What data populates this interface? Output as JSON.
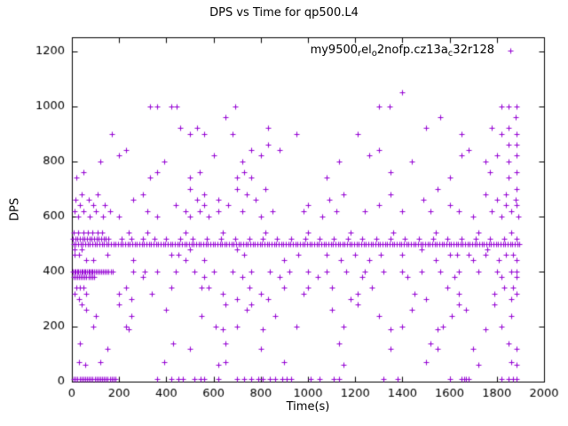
{
  "window": {
    "background": "#ffffff",
    "text_color": "#000000"
  },
  "chart_data": {
    "type": "scatter",
    "title": "DPS vs Time for qp500.L4",
    "xlabel": "Time(s)",
    "ylabel": "DPS",
    "xlim": [
      0,
      2000
    ],
    "ylim": [
      0,
      1250
    ],
    "x_ticks": [
      0,
      200,
      400,
      600,
      800,
      1000,
      1200,
      1400,
      1600,
      1800,
      2000
    ],
    "y_ticks": [
      0,
      200,
      400,
      600,
      800,
      1000,
      1200
    ],
    "grid": false,
    "legend": {
      "position": "top-right-inside",
      "label_plain": "my9500_rel_o2nofp.cz13a_c32r128",
      "label_parts": [
        {
          "t": "my9500"
        },
        {
          "t": "r",
          "sub": true
        },
        {
          "t": "el"
        },
        {
          "t": "o",
          "sub": true
        },
        {
          "t": "2nofp.cz13a"
        },
        {
          "t": "c",
          "sub": true
        },
        {
          "t": "32r128"
        }
      ]
    },
    "marker": {
      "shape": "plus",
      "color": "#9400d3",
      "size": 7
    },
    "series": [
      {
        "name": "my9500_rel_o2nofp.cz13a_c32r128",
        "rows": [
          {
            "y": 1050,
            "x": [
              1400
            ]
          },
          {
            "y": 1000,
            "x": [
              330,
              360,
              420,
              445,
              690,
              1300,
              1345,
              1820,
              1850,
              1882
            ]
          },
          {
            "y": 960,
            "x": [
              650,
              1560,
              1880
            ]
          },
          {
            "y": 920,
            "x": [
              460,
              530,
              830,
              1500,
              1780,
              1850
            ]
          },
          {
            "y": 900,
            "x": [
              170,
              500,
              560,
              680,
              950,
              1210,
              1650,
              1820,
              1882
            ]
          },
          {
            "y": 860,
            "x": [
              830,
              1850,
              1882
            ]
          },
          {
            "y": 840,
            "x": [
              230,
              760,
              880,
              1300,
              1680
            ]
          },
          {
            "y": 820,
            "x": [
              200,
              600,
              800,
              1260,
              1650,
              1800,
              1882
            ]
          },
          {
            "y": 800,
            "x": [
              120,
              390,
              720,
              1130,
              1440,
              1750,
              1850
            ]
          },
          {
            "y": 760,
            "x": [
              50,
              360,
              540,
              730,
              1350,
              1770,
              1882
            ]
          },
          {
            "y": 740,
            "x": [
              20,
              330,
              500,
              700,
              760,
              1080,
              1600,
              1850
            ]
          },
          {
            "y": 700,
            "x": [
              500,
              700,
              820,
              1550,
              1882
            ]
          },
          {
            "y": 680,
            "x": [
              40,
              110,
              300,
              560,
              740,
              1150,
              1350,
              1750,
              1840
            ]
          },
          {
            "y": 660,
            "x": [
              15,
              70,
              260,
              530,
              620,
              780,
              1090,
              1490,
              1800,
              1880
            ]
          },
          {
            "y": 640,
            "x": [
              35,
              90,
              140,
              440,
              560,
              660,
              1000,
              1300,
              1600,
              1840,
              1885
            ]
          },
          {
            "y": 620,
            "x": [
              10,
              50,
              100,
              160,
              320,
              480,
              540,
              620,
              720,
              850,
              980,
              1120,
              1240,
              1400,
              1520,
              1640,
              1780,
              1860
            ]
          },
          {
            "y": 600,
            "x": [
              25,
              75,
              130,
              200,
              360,
              500,
              580,
              800,
              1060,
              1700,
              1820,
              1890
            ]
          },
          {
            "y": 540,
            "x": [
              8,
              28,
              48,
              68,
              88,
              108,
              128,
              240,
              320,
              480,
              640,
              820,
              1000,
              1180,
              1360,
              1540,
              1720,
              1860
            ]
          },
          {
            "y": 520,
            "x": [
              4,
              14,
              24,
              34,
              44,
              54,
              64,
              74,
              84,
              94,
              104,
              114,
              124,
              134,
              144,
              154,
              210,
              250,
              300,
              350,
              400,
              460,
              510,
              570,
              630,
              690,
              750,
              810,
              870,
              930,
              990,
              1050,
              1110,
              1170,
              1230,
              1290,
              1350,
              1410,
              1470,
              1530,
              1590,
              1650,
              1710,
              1770,
              1830,
              1882
            ]
          },
          {
            "y": 500,
            "x": [
              6,
              16,
              26,
              36,
              46,
              56,
              66,
              76,
              86,
              96,
              106,
              116,
              126,
              136,
              146,
              156,
              166,
              176,
              186,
              196,
              206,
              216,
              226,
              236,
              246,
              256,
              266,
              276,
              286,
              296,
              306,
              316,
              326,
              336,
              346,
              356,
              366,
              376,
              386,
              396,
              406,
              416,
              426,
              436,
              446,
              456,
              466,
              476,
              486,
              496,
              506,
              516,
              526,
              536,
              546,
              556,
              566,
              576,
              586,
              596,
              606,
              616,
              626,
              636,
              646,
              656,
              666,
              676,
              686,
              696,
              706,
              716,
              726,
              736,
              746,
              756,
              766,
              776,
              786,
              796,
              806,
              816,
              826,
              836,
              846,
              856,
              866,
              876,
              886,
              896,
              906,
              916,
              926,
              936,
              946,
              956,
              966,
              976,
              986,
              996,
              1006,
              1016,
              1026,
              1036,
              1046,
              1056,
              1066,
              1076,
              1086,
              1096,
              1106,
              1116,
              1126,
              1136,
              1146,
              1156,
              1166,
              1176,
              1186,
              1196,
              1206,
              1216,
              1226,
              1236,
              1246,
              1256,
              1266,
              1276,
              1286,
              1296,
              1306,
              1316,
              1326,
              1336,
              1346,
              1356,
              1366,
              1376,
              1386,
              1396,
              1406,
              1416,
              1426,
              1436,
              1446,
              1456,
              1466,
              1476,
              1486,
              1496,
              1506,
              1516,
              1526,
              1536,
              1546,
              1556,
              1566,
              1576,
              1586,
              1596,
              1606,
              1616,
              1626,
              1636,
              1646,
              1656,
              1666,
              1676,
              1686,
              1696,
              1706,
              1716,
              1726,
              1736,
              1746,
              1756,
              1766,
              1776,
              1786,
              1796,
              1806,
              1816,
              1826,
              1836,
              1846,
              1856,
              1866,
              1876,
              1886,
              1896
            ]
          },
          {
            "y": 480,
            "x": [
              12,
              40,
              500,
              700,
              1480,
              1760
            ]
          },
          {
            "y": 460,
            "x": [
              10,
              30,
              150,
              420,
              450,
              730,
              960,
              1080,
              1200,
              1310,
              1400,
              1600,
              1630,
              1680,
              1750,
              1840,
              1870
            ]
          },
          {
            "y": 440,
            "x": [
              60,
              90,
              260,
              480,
              560,
              900,
              1140,
              1260,
              1540,
              1700,
              1810,
              1882
            ]
          },
          {
            "y": 400,
            "x": [
              4,
              10,
              16,
              22,
              28,
              34,
              40,
              46,
              52,
              58,
              64,
              70,
              76,
              82,
              88,
              94,
              100,
              108,
              116,
              124,
              132,
              140,
              148,
              156,
              164,
              172,
              260,
              310,
              360,
              440,
              520,
              600,
              680,
              760,
              840,
              920,
              1000,
              1080,
              1160,
              1240,
              1320,
              1400,
              1480,
              1560,
              1640,
              1720,
              1800,
              1860,
              1885
            ]
          },
          {
            "y": 380,
            "x": [
              6,
              14,
              22,
              30,
              38,
              46,
              54,
              62,
              70,
              78,
              86,
              94,
              300,
              560,
              720,
              880,
              1040,
              1230,
              1420,
              1620,
              1820,
              1882
            ]
          },
          {
            "y": 340,
            "x": [
              20,
              35,
              50,
              230,
              420,
              550,
              580,
              750,
              900,
              1000,
              1100,
              1270,
              1590,
              1830,
              1870
            ]
          },
          {
            "y": 320,
            "x": [
              10,
              60,
              200,
              340,
              640,
              800,
              980,
              1210,
              1450,
              1640,
              1790,
              1882
            ]
          },
          {
            "y": 300,
            "x": [
              30,
              250,
              700,
              830,
              1180,
              1500,
              1860
            ]
          },
          {
            "y": 280,
            "x": [
              40,
              200,
              650,
              760,
              1210,
              1640,
              1790
            ]
          },
          {
            "y": 260,
            "x": [
              60,
              400,
              740,
              1100,
              1440,
              1670
            ]
          },
          {
            "y": 240,
            "x": [
              100,
              250,
              550,
              860,
              1300,
              1610,
              1860
            ]
          },
          {
            "y": 200,
            "x": [
              90,
              230,
              610,
              700,
              950,
              1150,
              1400,
              1570,
              1820
            ]
          },
          {
            "y": 190,
            "x": [
              240,
              640,
              810,
              1350,
              1550,
              1750
            ]
          },
          {
            "y": 140,
            "x": [
              35,
              430,
              650,
              1130,
              1520,
              1850
            ]
          },
          {
            "y": 120,
            "x": [
              150,
              500,
              800,
              1350,
              1550,
              1700,
              1882
            ]
          },
          {
            "y": 70,
            "x": [
              30,
              120,
              390,
              650,
              900,
              1500,
              1860
            ]
          },
          {
            "y": 60,
            "x": [
              55,
              620,
              1150,
              1720,
              1882
            ]
          },
          {
            "y": 10,
            "x": [
              8,
              16,
              24,
              32,
              40,
              48,
              56,
              64,
              72,
              80,
              88,
              96,
              104,
              112,
              120,
              128,
              136,
              144,
              152,
              160,
              168,
              176,
              184,
              360,
              420,
              450,
              470,
              520,
              545,
              560,
              620,
              700,
              730,
              760,
              790,
              810,
              840,
              860,
              890,
              910,
              930,
              1010,
              1050,
              1110,
              1130,
              1320,
              1380,
              1600,
              1650,
              1660,
              1670,
              1680,
              1820,
              1850,
              1870,
              1885
            ]
          }
        ]
      }
    ]
  }
}
